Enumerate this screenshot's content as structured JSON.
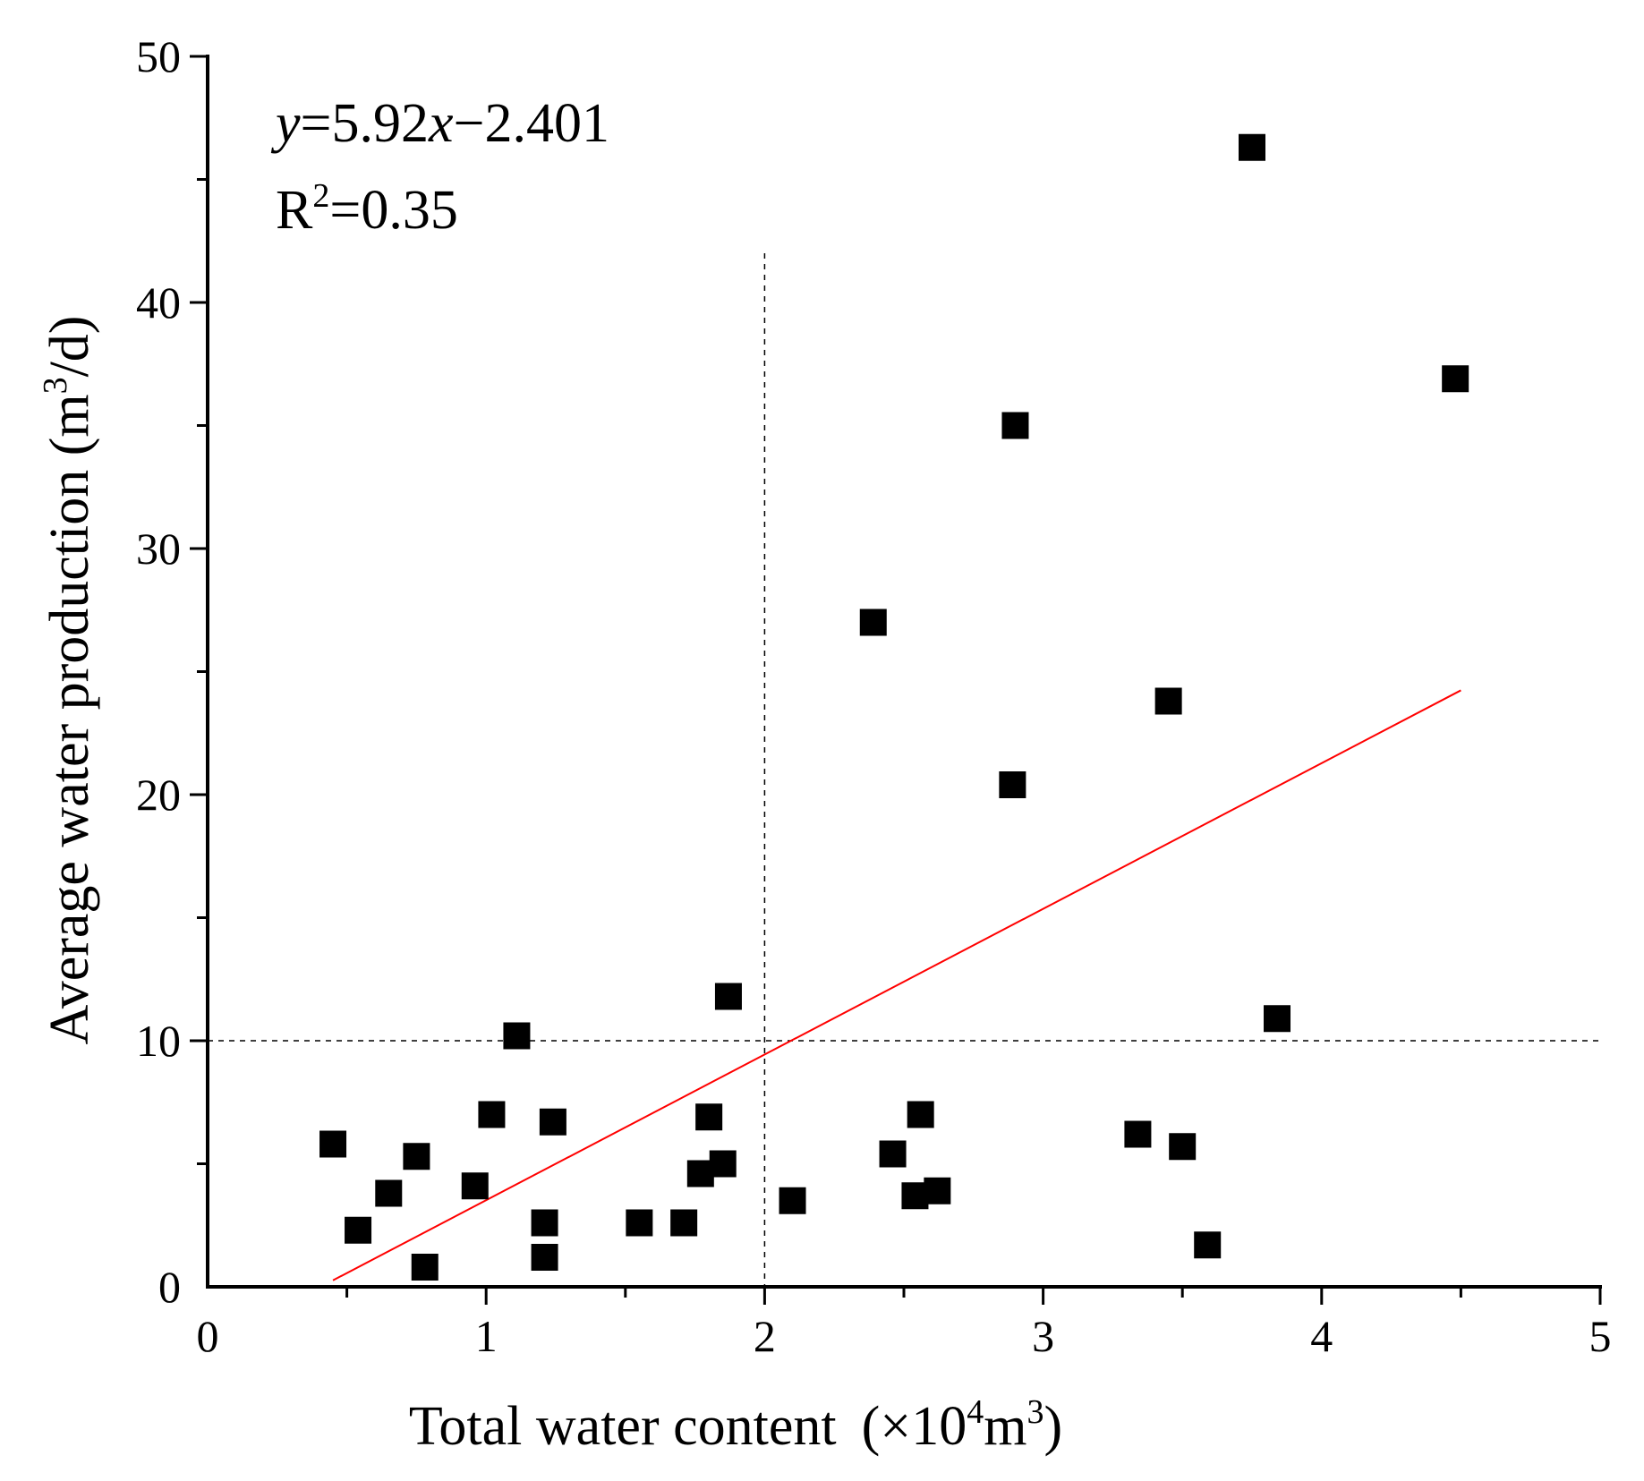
{
  "chart_data": {
    "type": "scatter",
    "xlabel": "Total water content",
    "xlabel_unit_prefix": "(×10",
    "xlabel_unit_exp1": "4",
    "xlabel_unit_mid": "m",
    "xlabel_unit_exp2": "3",
    "xlabel_unit_suffix": ")",
    "ylabel": "Average water production (m",
    "ylabel_exp": "3",
    "ylabel_suffix": "/d)",
    "xlim": [
      0,
      5
    ],
    "ylim": [
      0,
      50
    ],
    "xticks": [
      "0",
      "1",
      "2",
      "3",
      "4",
      "5"
    ],
    "yticks": [
      "0",
      "10",
      "20",
      "30",
      "40",
      "50"
    ],
    "marker_color": "#000000",
    "fit_color": "#ff0000",
    "equation": {
      "y": "y",
      "eq1": "=5.92",
      "x": "x",
      "eq2": "−2.401"
    },
    "r2": {
      "R": "R",
      "exp": "2",
      "rest": "=0.35"
    },
    "fit_line": {
      "slope": 5.92,
      "intercept": -2.401,
      "x_start": 0.45,
      "x_end": 4.5
    },
    "reference_lines": {
      "x": 2,
      "y": 10,
      "x_line_top": 42
    },
    "points": [
      [
        0.45,
        5.8
      ],
      [
        0.54,
        2.3
      ],
      [
        0.65,
        3.8
      ],
      [
        0.75,
        5.3
      ],
      [
        0.78,
        0.8
      ],
      [
        0.96,
        4.1
      ],
      [
        1.02,
        7.0
      ],
      [
        1.11,
        10.2
      ],
      [
        1.21,
        2.6
      ],
      [
        1.21,
        1.2
      ],
      [
        1.24,
        6.7
      ],
      [
        1.55,
        2.6
      ],
      [
        1.71,
        2.6
      ],
      [
        1.77,
        4.6
      ],
      [
        1.8,
        6.9
      ],
      [
        1.85,
        5.0
      ],
      [
        1.87,
        11.8
      ],
      [
        2.1,
        3.5
      ],
      [
        2.39,
        27.0
      ],
      [
        2.46,
        5.4
      ],
      [
        2.54,
        3.7
      ],
      [
        2.56,
        7.0
      ],
      [
        2.62,
        3.9
      ],
      [
        2.89,
        20.4
      ],
      [
        2.9,
        35.0
      ],
      [
        3.34,
        6.2
      ],
      [
        3.45,
        23.8
      ],
      [
        3.5,
        5.7
      ],
      [
        3.59,
        1.7
      ],
      [
        3.75,
        46.3
      ],
      [
        3.84,
        10.9
      ],
      [
        4.48,
        36.9
      ]
    ]
  }
}
